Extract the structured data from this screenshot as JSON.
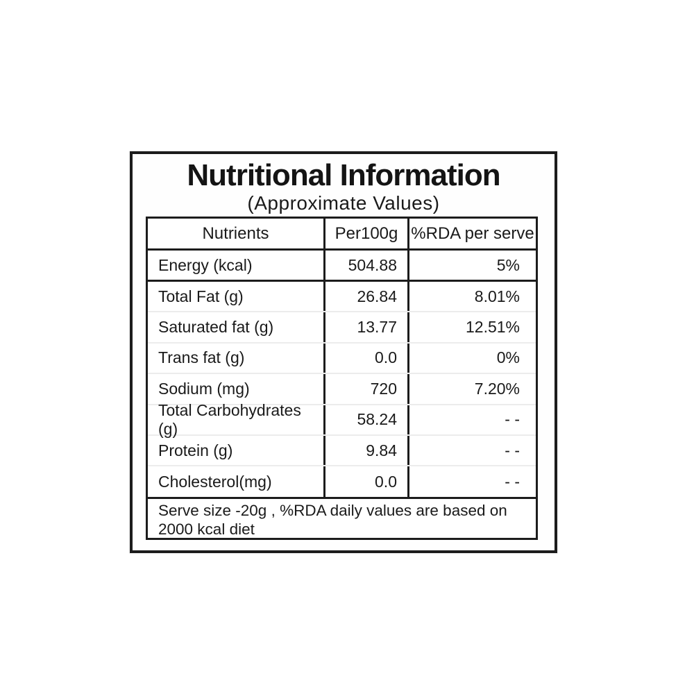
{
  "label": {
    "title": "Nutritional Information",
    "subtitle": "(Approximate Values)",
    "columns": [
      "Nutrients",
      "Per100g",
      "%RDA per serve"
    ],
    "rows": [
      {
        "nutrient": "Energy (kcal)",
        "per100g": "504.88",
        "rda": "5%"
      },
      {
        "nutrient": "Total Fat (g)",
        "per100g": "26.84",
        "rda": "8.01%"
      },
      {
        "nutrient": "Saturated fat (g)",
        "per100g": "13.77",
        "rda": "12.51%"
      },
      {
        "nutrient": "Trans fat (g)",
        "per100g": "0.0",
        "rda": "0%"
      },
      {
        "nutrient": "Sodium (mg)",
        "per100g": "720",
        "rda": "7.20%"
      },
      {
        "nutrient": "Total Carbohydrates (g)",
        "per100g": "58.24",
        "rda": "- -"
      },
      {
        "nutrient": "Protein (g)",
        "per100g": "9.84",
        "rda": "- -"
      },
      {
        "nutrient": "Cholesterol(mg)",
        "per100g": "0.0",
        "rda": "- -"
      }
    ],
    "footnote_lines": [
      "Serve size -20g , %RDA daily values are based on",
      "2000 kcal diet"
    ],
    "colors": {
      "border": "#1c1c1c",
      "text": "#1a1a1a",
      "row_divider": "#ececec",
      "background": "#ffffff"
    }
  }
}
